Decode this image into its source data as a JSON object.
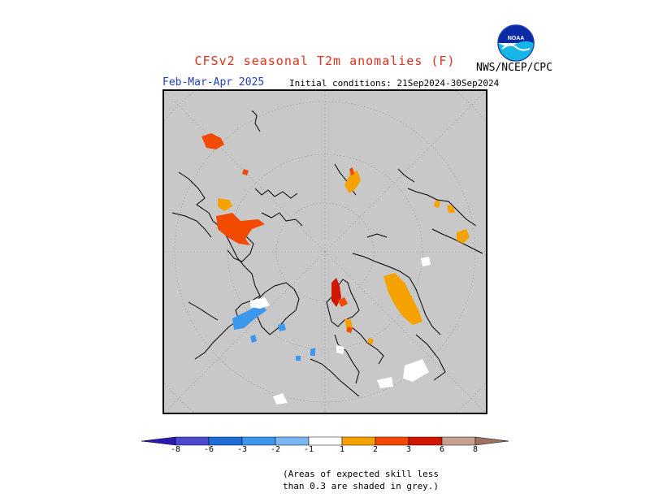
{
  "header": {
    "title": "CFSv2 seasonal T2m anomalies (F)",
    "agency": "NWS/NCEP/CPC",
    "period": "Feb-Mar-Apr 2025",
    "initial_conditions": "Initial conditions: 21Sep2024-30Sep2024"
  },
  "logo": {
    "text": "NOAA"
  },
  "legend": {
    "ticks": [
      "-8",
      "-6",
      "-3",
      "-2",
      "-1",
      "1",
      "2",
      "3",
      "6",
      "8"
    ],
    "colors": [
      "#2a1bb0",
      "#4b49d0",
      "#1f6ed8",
      "#3c97ee",
      "#7ab8f5",
      "#ffffff",
      "#f5a100",
      "#f24a00",
      "#d01500",
      "#9c0a0a",
      "#c8a090",
      "#a07060"
    ]
  },
  "note": {
    "line1": "(Areas of expected skill less",
    "line2": "than 0.3 are shaded in grey.)"
  },
  "map": {
    "background_color": "#c8c8c8",
    "projection": "north polar stereographic",
    "no_skill_color": "grey"
  }
}
